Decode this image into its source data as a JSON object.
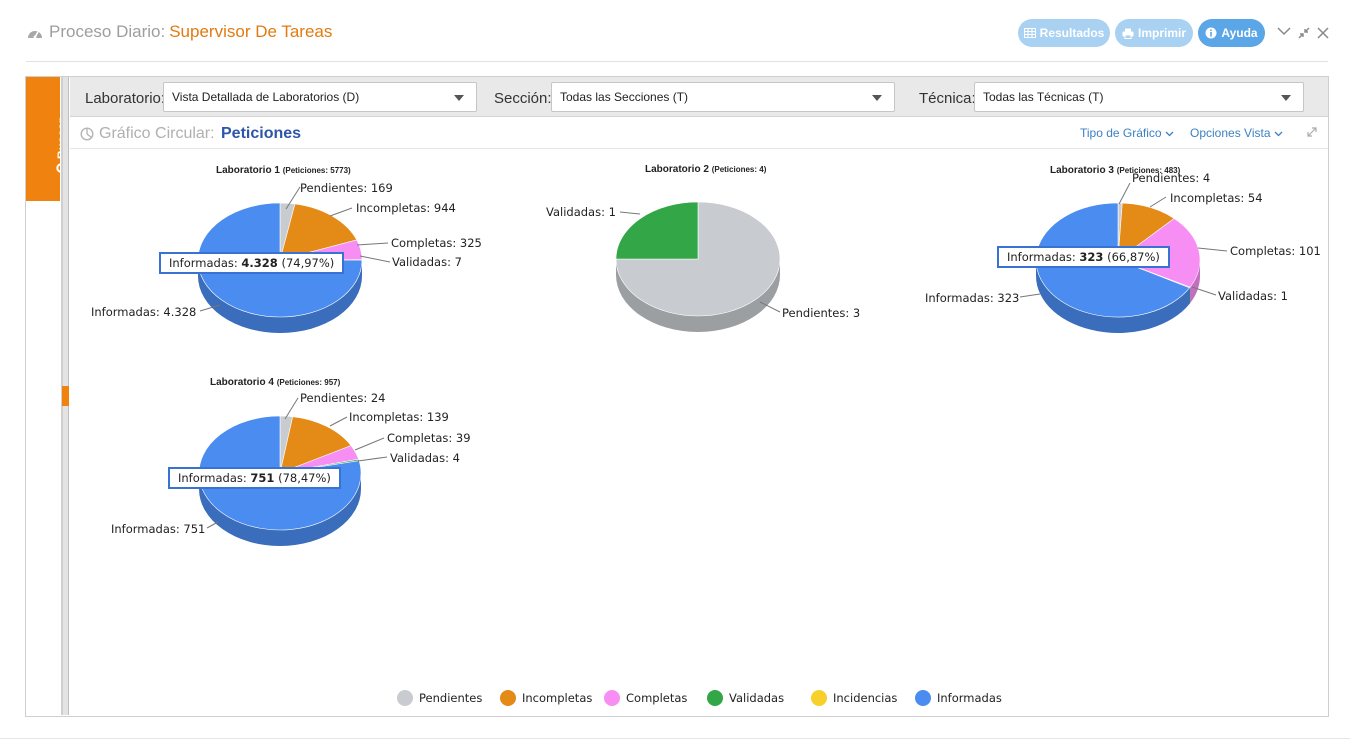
{
  "header": {
    "title_prefix": "Proceso Diario:",
    "title_main": "Supervisor De Tareas",
    "buttons": [
      {
        "label": "Resultados",
        "icon": "table-icon"
      },
      {
        "label": "Imprimir",
        "icon": "print-icon"
      },
      {
        "label": "Ayuda",
        "icon": "info-icon"
      }
    ],
    "window_controls": [
      "chevron-down-icon",
      "compress-icon",
      "close-icon"
    ]
  },
  "sidebar": {
    "search_tab_label": "Buscar"
  },
  "filters": {
    "laboratorio": {
      "label": "Laboratorio:",
      "value": "Vista Detallada de Laboratorios (D)"
    },
    "seccion": {
      "label": "Sección:",
      "value": "Todas las Secciones (T)"
    },
    "tecnica": {
      "label": "Técnica:",
      "value": "Todas las Técnicas (T)"
    }
  },
  "chart_toolbar": {
    "label": "Gráfico Circular:",
    "value": "Peticiones",
    "chart_type_link": "Tipo de Gráfico",
    "view_options_link": "Opciones Vista"
  },
  "colors": {
    "pendientes": "#c8ccd0",
    "incompletas": "#e38a17",
    "completas": "#f78ef3",
    "validadas": "#33a647",
    "incidencias": "#f7d02c",
    "informadas": "#4a8cf0"
  },
  "chart_data": [
    {
      "type": "pie",
      "title": "Laboratorio 1",
      "subtitle": "(Peticiones: 5773)",
      "categories": [
        "Pendientes",
        "Incompletas",
        "Completas",
        "Validadas",
        "Informadas"
      ],
      "values": [
        169,
        944,
        325,
        7,
        4328
      ],
      "labels": [
        "Pendientes: 169",
        "Incompletas: 944",
        "Completas: 325",
        "Validadas: 7",
        "Informadas: 4.328"
      ],
      "tooltip": {
        "name": "Informadas:",
        "value": "4.328",
        "pct": "(74,97%)"
      }
    },
    {
      "type": "pie",
      "title": "Laboratorio 2",
      "subtitle": "(Peticiones: 4)",
      "categories": [
        "Pendientes",
        "Validadas"
      ],
      "values": [
        3,
        1
      ],
      "labels": [
        "Pendientes: 3",
        "Validadas: 1"
      ]
    },
    {
      "type": "pie",
      "title": "Laboratorio 3",
      "subtitle": "(Peticiones: 483)",
      "categories": [
        "Pendientes",
        "Incompletas",
        "Completas",
        "Validadas",
        "Informadas"
      ],
      "values": [
        4,
        54,
        101,
        1,
        323
      ],
      "labels": [
        "Pendientes: 4",
        "Incompletas: 54",
        "Completas: 101",
        "Validadas: 1",
        "Informadas: 323"
      ],
      "tooltip": {
        "name": "Informadas:",
        "value": "323",
        "pct": "(66,87%)"
      }
    },
    {
      "type": "pie",
      "title": "Laboratorio  4",
      "subtitle": "(Peticiones: 957)",
      "categories": [
        "Pendientes",
        "Incompletas",
        "Completas",
        "Validadas",
        "Informadas"
      ],
      "values": [
        24,
        139,
        39,
        4,
        751
      ],
      "labels": [
        "Pendientes: 24",
        "Incompletas: 139",
        "Completas: 39",
        "Validadas: 4",
        "Informadas: 751"
      ],
      "tooltip": {
        "name": "Informadas:",
        "value": "751",
        "pct": "(78,47%)"
      }
    }
  ],
  "legend": [
    "Pendientes",
    "Incompletas",
    "Completas",
    "Validadas",
    "Incidencias",
    "Informadas"
  ]
}
